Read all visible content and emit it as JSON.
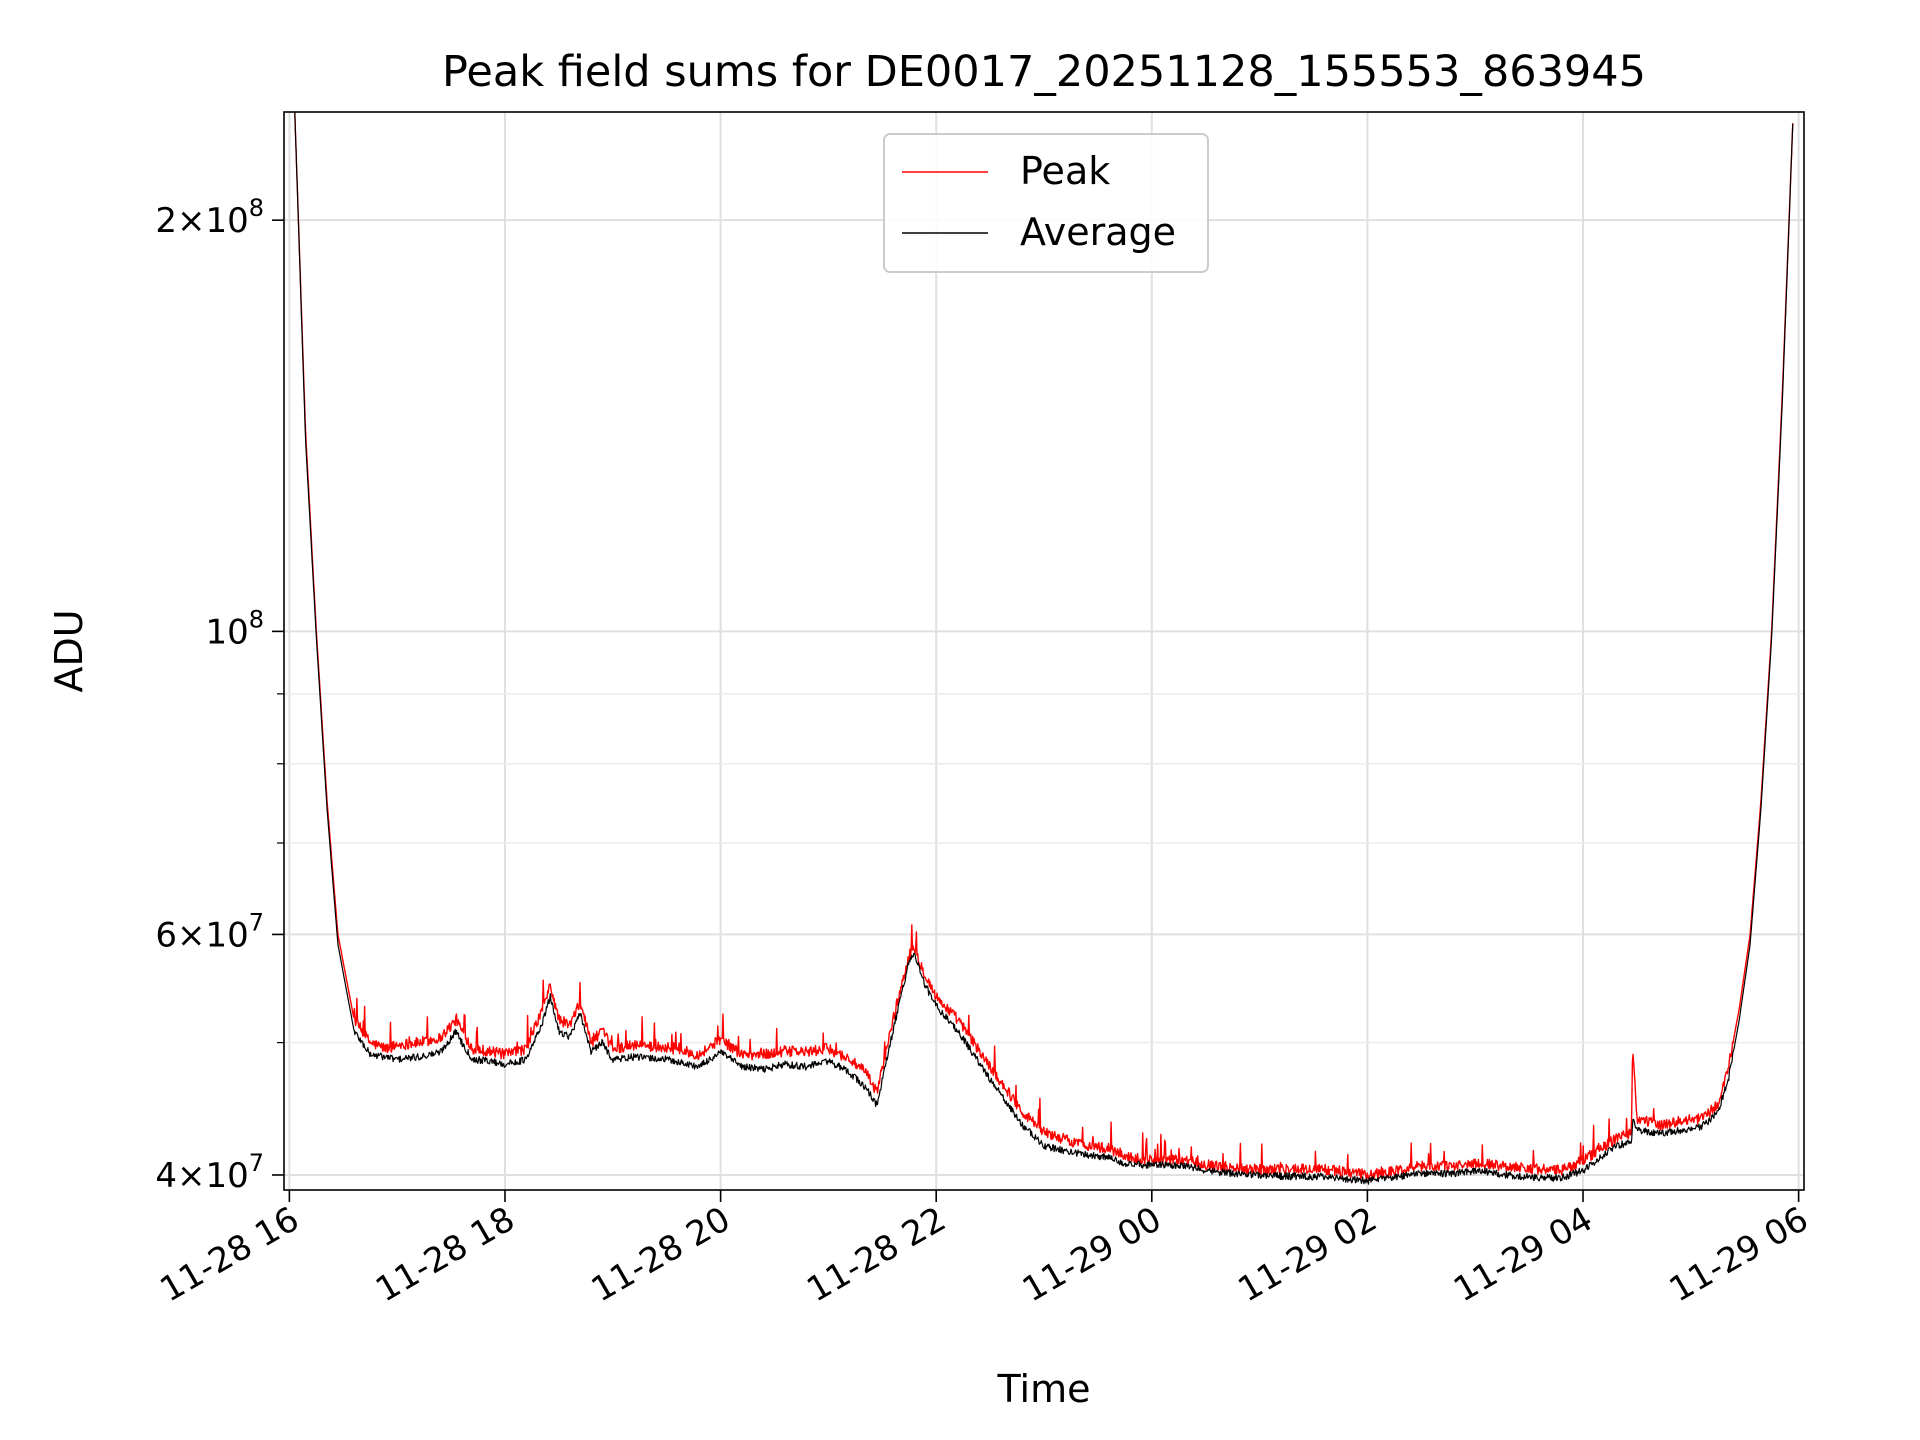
{
  "chart_data": {
    "type": "line",
    "title": "Peak field sums for DE0017_20251128_155553_863945",
    "xlabel": "Time",
    "ylabel": "ADU",
    "yscale": "log",
    "xlim_hours": [
      15.95,
      30.05
    ],
    "ylim": [
      39000000,
      240000000
    ],
    "grid": true,
    "legend_position": "upper center",
    "x_ticks": [
      {
        "hour": 16,
        "label": "11-28 16"
      },
      {
        "hour": 18,
        "label": "11-28 18"
      },
      {
        "hour": 20,
        "label": "11-28 20"
      },
      {
        "hour": 22,
        "label": "11-28 22"
      },
      {
        "hour": 24,
        "label": "11-29 00"
      },
      {
        "hour": 26,
        "label": "11-29 02"
      },
      {
        "hour": 28,
        "label": "11-29 04"
      },
      {
        "hour": 30,
        "label": "11-29 06"
      }
    ],
    "y_ticks": [
      {
        "value": 40000000,
        "mantissa": "4",
        "exp": "7"
      },
      {
        "value": 60000000,
        "mantissa": "6",
        "exp": "7"
      },
      {
        "value": 100000000,
        "mantissa": "",
        "exp": "8"
      },
      {
        "value": 200000000,
        "mantissa": "2",
        "exp": "8"
      }
    ],
    "y_minor_ticks": [
      50000000,
      70000000,
      80000000,
      90000000
    ],
    "series": [
      {
        "name": "Peak",
        "color": "#ff0000",
        "x_hours": [
          16.05,
          16.15,
          16.25,
          16.35,
          16.45,
          16.6,
          16.75,
          16.9,
          17.0,
          17.2,
          17.4,
          17.55,
          17.6,
          17.7,
          17.85,
          18.0,
          18.2,
          18.35,
          18.42,
          18.5,
          18.6,
          18.7,
          18.8,
          18.9,
          19.0,
          19.2,
          19.5,
          19.8,
          20.0,
          20.2,
          20.4,
          20.6,
          20.8,
          21.0,
          21.2,
          21.35,
          21.45,
          21.6,
          21.75,
          21.8,
          21.9,
          22.0,
          22.2,
          22.5,
          22.8,
          23.0,
          23.3,
          23.6,
          23.8,
          24.0,
          24.3,
          24.6,
          25.0,
          25.3,
          25.6,
          26.0,
          26.2,
          26.5,
          26.8,
          27.0,
          27.3,
          27.6,
          27.8,
          28.0,
          28.2,
          28.3,
          28.45,
          28.46,
          28.5,
          28.7,
          28.9,
          29.1,
          29.25,
          29.35,
          29.45,
          29.55,
          29.65,
          29.75,
          29.85,
          29.95
        ],
        "values": [
          240000000,
          140000000,
          100000000,
          75000000,
          60000000,
          52000000,
          50000000,
          49500000,
          49800000,
          50000000,
          50400000,
          52000000,
          51000000,
          49500000,
          49300000,
          49000000,
          49500000,
          53000000,
          55000000,
          52000000,
          51500000,
          53500000,
          50000000,
          51000000,
          49500000,
          49800000,
          49600000,
          49000000,
          50300000,
          49000000,
          49000000,
          49300000,
          49200000,
          49500000,
          48600000,
          47500000,
          46000000,
          52000000,
          58000000,
          58500000,
          56000000,
          54000000,
          52000000,
          48000000,
          44500000,
          43000000,
          42200000,
          41800000,
          41200000,
          41000000,
          41000000,
          40600000,
          40400000,
          40400000,
          40400000,
          40000000,
          40200000,
          40600000,
          40600000,
          40800000,
          40600000,
          40400000,
          40300000,
          41000000,
          42000000,
          42500000,
          43000000,
          50000000,
          44000000,
          43500000,
          43800000,
          44000000,
          45000000,
          48000000,
          53000000,
          60000000,
          75000000,
          100000000,
          150000000,
          240000000
        ]
      },
      {
        "name": "Average",
        "color": "#000000",
        "x_hours": [
          16.05,
          16.15,
          16.25,
          16.35,
          16.45,
          16.6,
          16.75,
          16.9,
          17.0,
          17.2,
          17.4,
          17.55,
          17.6,
          17.7,
          17.85,
          18.0,
          18.2,
          18.35,
          18.42,
          18.5,
          18.6,
          18.7,
          18.8,
          18.9,
          19.0,
          19.2,
          19.5,
          19.8,
          20.0,
          20.2,
          20.4,
          20.6,
          20.8,
          21.0,
          21.2,
          21.35,
          21.45,
          21.6,
          21.75,
          21.8,
          21.9,
          22.0,
          22.2,
          22.5,
          22.8,
          23.0,
          23.3,
          23.6,
          23.8,
          24.0,
          24.3,
          24.6,
          25.0,
          25.3,
          25.6,
          26.0,
          26.2,
          26.5,
          26.8,
          27.0,
          27.3,
          27.6,
          27.8,
          28.0,
          28.2,
          28.3,
          28.45,
          28.46,
          28.5,
          28.7,
          28.9,
          29.1,
          29.25,
          29.35,
          29.45,
          29.55,
          29.65,
          29.75,
          29.85,
          29.95
        ],
        "values": [
          240000000,
          138000000,
          99000000,
          74000000,
          59000000,
          51000000,
          49000000,
          48800000,
          48600000,
          48800000,
          49200000,
          51000000,
          50000000,
          48600000,
          48500000,
          48200000,
          48600000,
          51800000,
          54000000,
          51000000,
          50500000,
          52500000,
          49200000,
          50000000,
          48600000,
          48800000,
          48600000,
          48000000,
          49200000,
          48000000,
          47800000,
          48200000,
          48000000,
          48500000,
          47500000,
          46300000,
          45000000,
          51000000,
          57500000,
          58000000,
          55000000,
          53200000,
          51000000,
          47000000,
          43500000,
          42000000,
          41500000,
          41200000,
          40700000,
          40700000,
          40600000,
          40200000,
          40000000,
          39900000,
          39900000,
          39600000,
          39800000,
          40100000,
          40100000,
          40300000,
          40000000,
          39800000,
          39800000,
          40300000,
          41400000,
          42000000,
          42300000,
          44000000,
          43200000,
          42900000,
          43100000,
          43400000,
          44400000,
          47000000,
          52000000,
          59000000,
          74000000,
          99000000,
          148000000,
          240000000
        ]
      }
    ]
  }
}
